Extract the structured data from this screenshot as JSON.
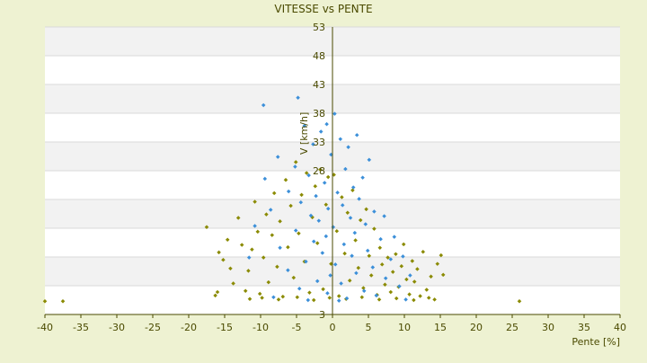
{
  "chart_data": {
    "type": "scatter",
    "title": "VITESSE vs PENTE",
    "xlabel": "Pente [%]",
    "ylabel": "V [km/h]",
    "xlim": [
      -40,
      40
    ],
    "ylim": [
      3,
      53
    ],
    "x_ticks": [
      "-40",
      "-35",
      "-30",
      "-25",
      "-20",
      "-15",
      "-10",
      "-5",
      "0",
      "5",
      "10",
      "15",
      "20",
      "25",
      "30",
      "35",
      "40"
    ],
    "y_ticks": [
      "3",
      "",
      "",
      "",
      "",
      "28",
      "33",
      "38",
      "43",
      "48",
      "53"
    ],
    "grid": true,
    "legend": "none",
    "background_bands": [
      "#ffffff",
      "#f2f2f2"
    ],
    "series": [
      {
        "color": "#8a8a00",
        "marker": "diamond",
        "points": [
          [
            -40,
            5.3
          ],
          [
            -37.5,
            5.3
          ],
          [
            26,
            5.3
          ],
          [
            -17.5,
            18.2
          ],
          [
            -16.3,
            6.3
          ],
          [
            -16,
            6.9
          ],
          [
            -15.8,
            13.8
          ],
          [
            -15.2,
            12.5
          ],
          [
            -14.6,
            16.0
          ],
          [
            -14.2,
            11.0
          ],
          [
            -13.8,
            8.4
          ],
          [
            -13.1,
            19.8
          ],
          [
            -12.6,
            15.1
          ],
          [
            -12.1,
            7.1
          ],
          [
            -11.7,
            10.6
          ],
          [
            -11.2,
            14.3
          ],
          [
            -10.8,
            22.6
          ],
          [
            -10.4,
            17.4
          ],
          [
            -10.1,
            6.6
          ],
          [
            -9.6,
            12.9
          ],
          [
            -9.2,
            20.4
          ],
          [
            -8.9,
            8.6
          ],
          [
            -8.4,
            16.8
          ],
          [
            -8.1,
            24.1
          ],
          [
            -7.7,
            11.3
          ],
          [
            -7.3,
            19.2
          ],
          [
            -6.9,
            6.1
          ],
          [
            -6.5,
            26.4
          ],
          [
            -6.2,
            14.7
          ],
          [
            -5.8,
            21.9
          ],
          [
            -5.4,
            9.4
          ],
          [
            -5.1,
            29.5
          ],
          [
            -4.7,
            17.1
          ],
          [
            -4.3,
            23.8
          ],
          [
            -3.9,
            12.2
          ],
          [
            -3.6,
            27.6
          ],
          [
            -3.2,
            6.8
          ],
          [
            -2.8,
            19.9
          ],
          [
            -2.4,
            25.3
          ],
          [
            -2.1,
            15.4
          ],
          [
            -1.7,
            28.2
          ],
          [
            -1.3,
            7.4
          ],
          [
            -0.9,
            22.1
          ],
          [
            -0.6,
            26.9
          ],
          [
            -0.2,
            11.8
          ],
          [
            0.2,
            27.3
          ],
          [
            0.6,
            17.5
          ],
          [
            0.9,
            6.2
          ],
          [
            1.3,
            23.4
          ],
          [
            1.7,
            13.6
          ],
          [
            2.1,
            20.7
          ],
          [
            2.4,
            8.9
          ],
          [
            2.8,
            24.6
          ],
          [
            3.2,
            15.9
          ],
          [
            3.6,
            11.1
          ],
          [
            3.9,
            19.4
          ],
          [
            4.3,
            7.6
          ],
          [
            4.7,
            21.3
          ],
          [
            5.1,
            13.2
          ],
          [
            5.4,
            9.8
          ],
          [
            5.8,
            17.9
          ],
          [
            6.2,
            6.4
          ],
          [
            6.6,
            14.6
          ],
          [
            6.9,
            11.7
          ],
          [
            7.3,
            8.2
          ],
          [
            7.7,
            12.9
          ],
          [
            8.1,
            6.9
          ],
          [
            8.4,
            10.4
          ],
          [
            8.8,
            13.5
          ],
          [
            9.2,
            7.8
          ],
          [
            9.6,
            11.4
          ],
          [
            9.9,
            15.2
          ],
          [
            10.3,
            9.1
          ],
          [
            10.7,
            6.5
          ],
          [
            11.1,
            12.3
          ],
          [
            11.4,
            8.7
          ],
          [
            11.8,
            10.9
          ],
          [
            12.2,
            6.2
          ],
          [
            12.6,
            13.9
          ],
          [
            13.1,
            7.3
          ],
          [
            13.7,
            9.6
          ],
          [
            14.2,
            5.6
          ],
          [
            14.6,
            11.8
          ],
          [
            15.1,
            13.3
          ],
          [
            15.4,
            9.9
          ],
          [
            -11.5,
            5.7
          ],
          [
            -9.8,
            5.9
          ],
          [
            -7.5,
            5.6
          ],
          [
            -4.9,
            6.0
          ],
          [
            -2.6,
            5.5
          ],
          [
            -0.4,
            5.9
          ],
          [
            1.9,
            5.7
          ],
          [
            4.1,
            6.0
          ],
          [
            6.5,
            5.6
          ],
          [
            8.9,
            5.8
          ],
          [
            11.3,
            5.5
          ],
          [
            13.4,
            5.9
          ]
        ]
      },
      {
        "color": "#3b8fd9",
        "marker": "diamond",
        "points": [
          [
            -9.6,
            39.4
          ],
          [
            -4.8,
            40.7
          ],
          [
            -3.9,
            35.8
          ],
          [
            -0.8,
            36.1
          ],
          [
            0.3,
            37.9
          ],
          [
            3.4,
            34.2
          ],
          [
            -1.6,
            34.8
          ],
          [
            1.1,
            33.5
          ],
          [
            -2.7,
            32.6
          ],
          [
            2.2,
            32.1
          ],
          [
            -7.6,
            30.4
          ],
          [
            5.1,
            29.9
          ],
          [
            -5.2,
            28.7
          ],
          [
            -0.2,
            30.8
          ],
          [
            1.8,
            28.3
          ],
          [
            -3.3,
            27.2
          ],
          [
            4.2,
            26.8
          ],
          [
            -1.1,
            25.9
          ],
          [
            2.9,
            25.1
          ],
          [
            -6.1,
            24.4
          ],
          [
            0.7,
            24.2
          ],
          [
            -2.3,
            23.6
          ],
          [
            3.7,
            23.1
          ],
          [
            -4.4,
            22.5
          ],
          [
            1.4,
            22.0
          ],
          [
            -0.6,
            21.4
          ],
          [
            5.8,
            20.9
          ],
          [
            -3.0,
            20.2
          ],
          [
            2.5,
            19.8
          ],
          [
            -1.9,
            19.3
          ],
          [
            4.6,
            18.7
          ],
          [
            0.1,
            18.2
          ],
          [
            -5.1,
            17.6
          ],
          [
            3.1,
            17.2
          ],
          [
            -0.9,
            16.6
          ],
          [
            6.7,
            16.1
          ],
          [
            -2.6,
            15.7
          ],
          [
            1.6,
            15.2
          ],
          [
            -7.3,
            14.6
          ],
          [
            4.9,
            14.1
          ],
          [
            -1.4,
            13.7
          ],
          [
            2.7,
            13.2
          ],
          [
            8.1,
            12.6
          ],
          [
            -3.7,
            12.2
          ],
          [
            0.4,
            11.7
          ],
          [
            5.6,
            11.2
          ],
          [
            -6.2,
            10.7
          ],
          [
            3.3,
            10.2
          ],
          [
            -0.3,
            9.8
          ],
          [
            7.4,
            9.3
          ],
          [
            -2.1,
            8.8
          ],
          [
            1.2,
            8.4
          ],
          [
            9.3,
            7.9
          ],
          [
            -4.6,
            7.5
          ],
          [
            4.4,
            7.1
          ],
          [
            -0.7,
            6.7
          ],
          [
            6.1,
            6.3
          ],
          [
            -8.2,
            6.0
          ],
          [
            2.0,
            5.8
          ],
          [
            10.2,
            5.6
          ],
          [
            -3.4,
            5.5
          ],
          [
            0.9,
            5.4
          ],
          [
            -9.4,
            26.6
          ],
          [
            -8.6,
            21.2
          ],
          [
            7.2,
            20.1
          ],
          [
            8.6,
            16.5
          ],
          [
            9.8,
            13.1
          ],
          [
            10.8,
            9.8
          ],
          [
            -10.8,
            18.4
          ],
          [
            -11.6,
            12.9
          ]
        ]
      }
    ]
  }
}
